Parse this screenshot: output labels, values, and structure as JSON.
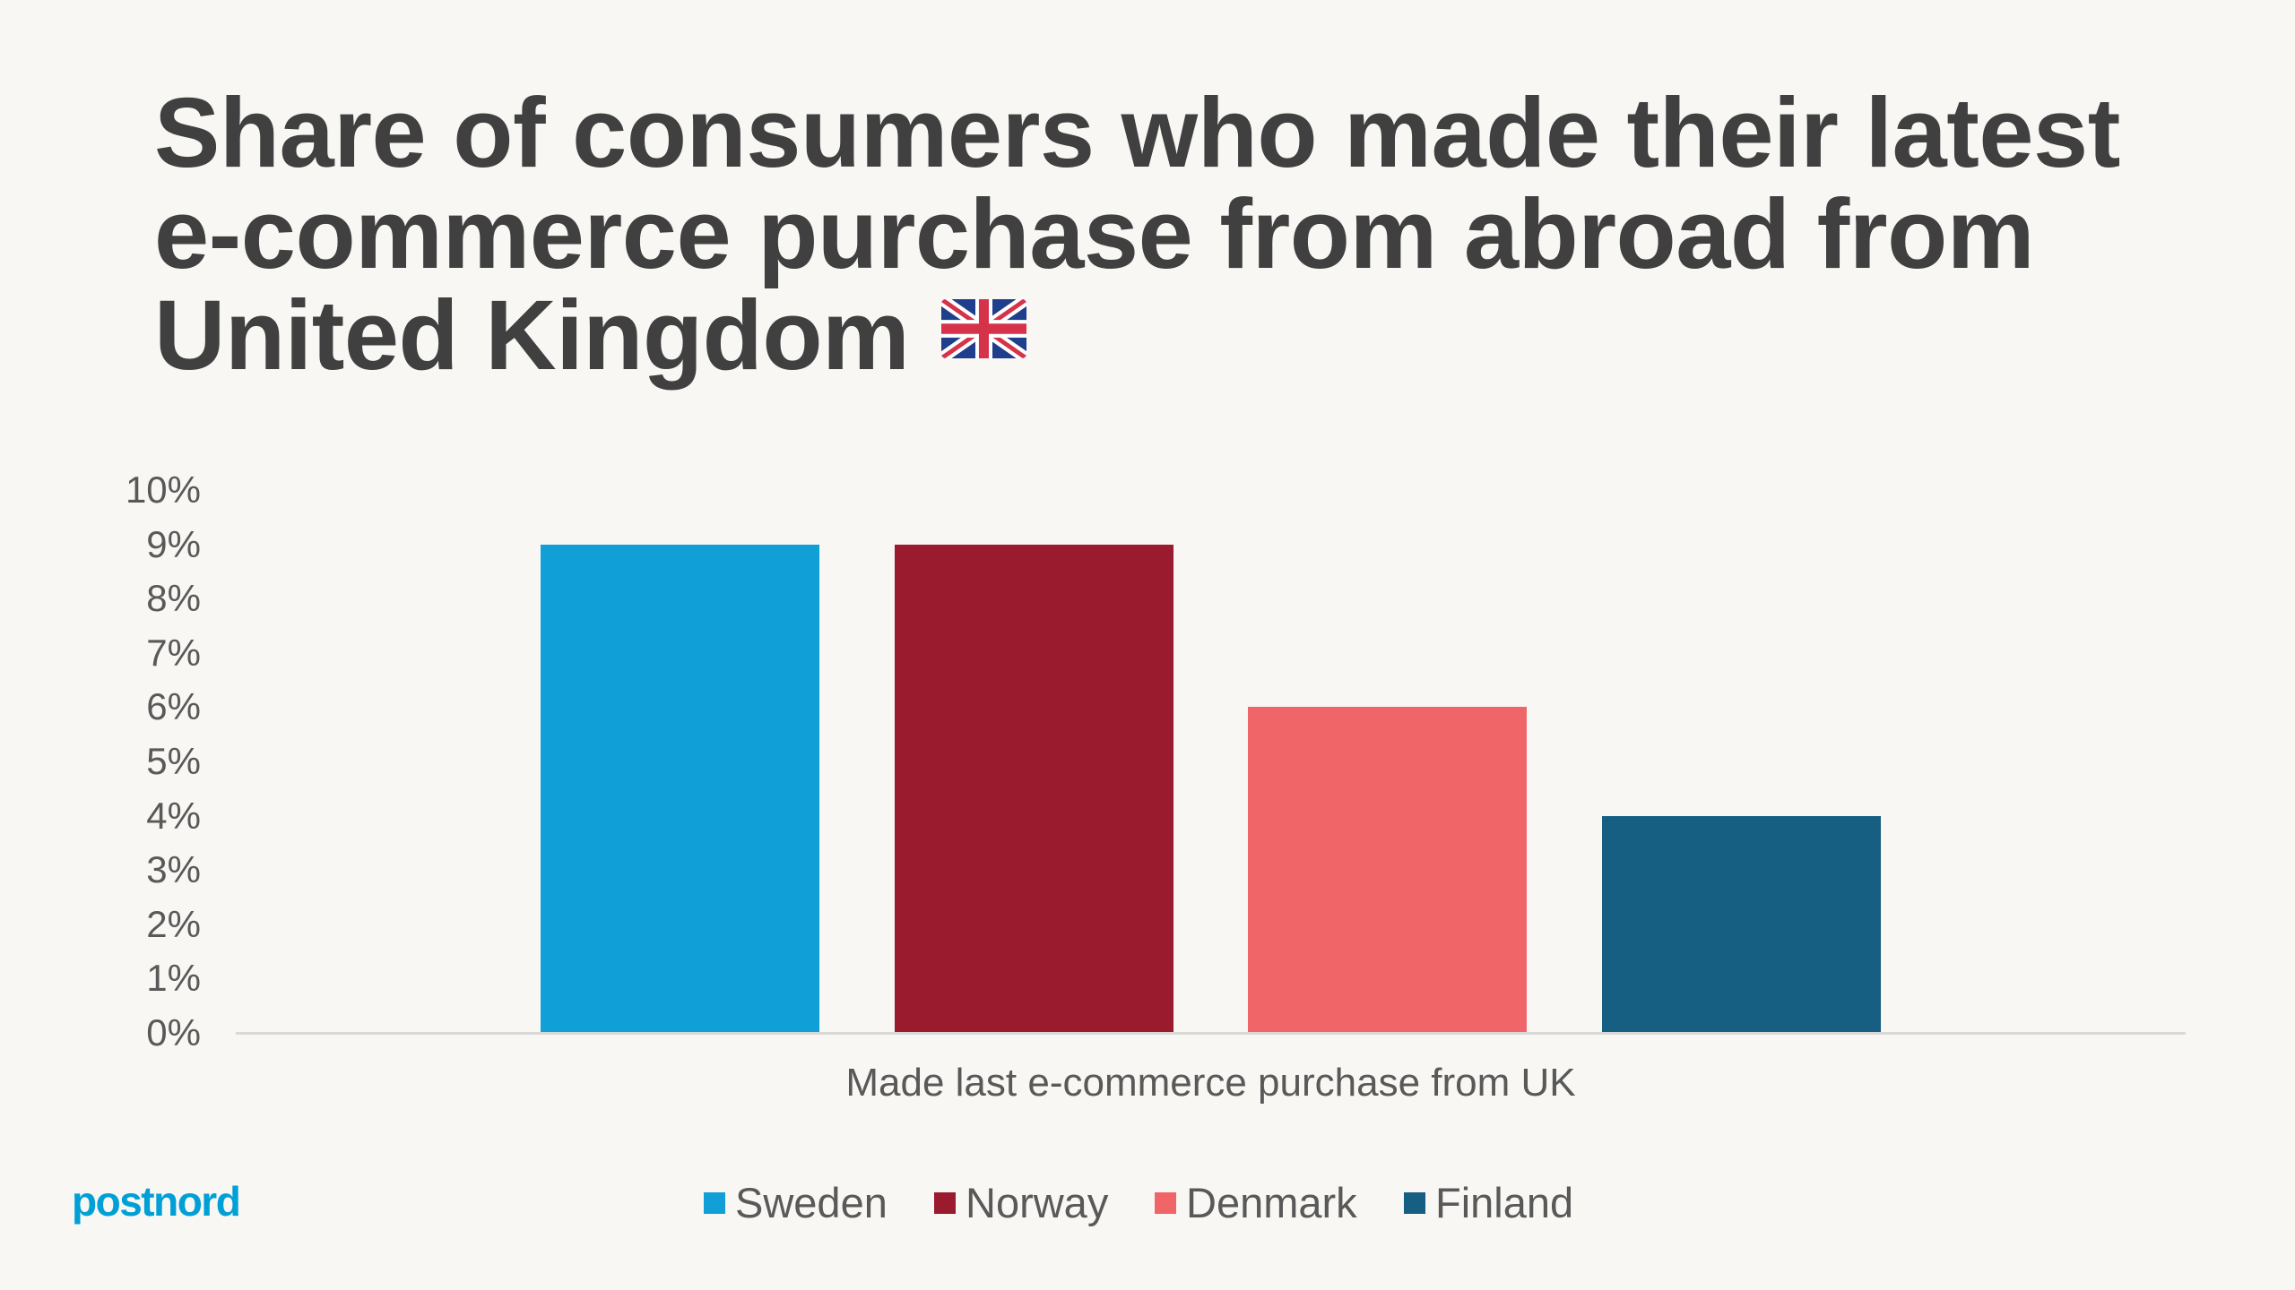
{
  "title": {
    "lines": [
      "Share of consumers who made their latest",
      "e-commerce purchase from abroad from",
      "United Kingdom"
    ],
    "emoji": "flag-united-kingdom"
  },
  "logo": {
    "text": "postnord",
    "color": "#00A0D6"
  },
  "colors": {
    "background": "#F8F7F3",
    "title_text": "#404040",
    "axis_text": "#595959",
    "axis_line": "#D9D9D9"
  },
  "chart_data": {
    "type": "bar",
    "title": "Share of consumers who made their latest e-commerce purchase from abroad from United Kingdom",
    "categories": [
      "Made last e-commerce purchase from UK"
    ],
    "series": [
      {
        "name": "Sweden",
        "values": [
          9
        ],
        "color": "#109FD6"
      },
      {
        "name": "Norway",
        "values": [
          9
        ],
        "color": "#9A1A2E"
      },
      {
        "name": "Denmark",
        "values": [
          6
        ],
        "color": "#F06568"
      },
      {
        "name": "Finland",
        "values": [
          4
        ],
        "color": "#175F82"
      }
    ],
    "xlabel": "",
    "ylabel": "",
    "ylim": [
      0,
      10
    ],
    "y_unit": "%",
    "y_ticks": [
      "0%",
      "1%",
      "2%",
      "3%",
      "4%",
      "5%",
      "6%",
      "7%",
      "8%",
      "9%",
      "10%"
    ],
    "grid": false,
    "legend_position": "bottom"
  }
}
